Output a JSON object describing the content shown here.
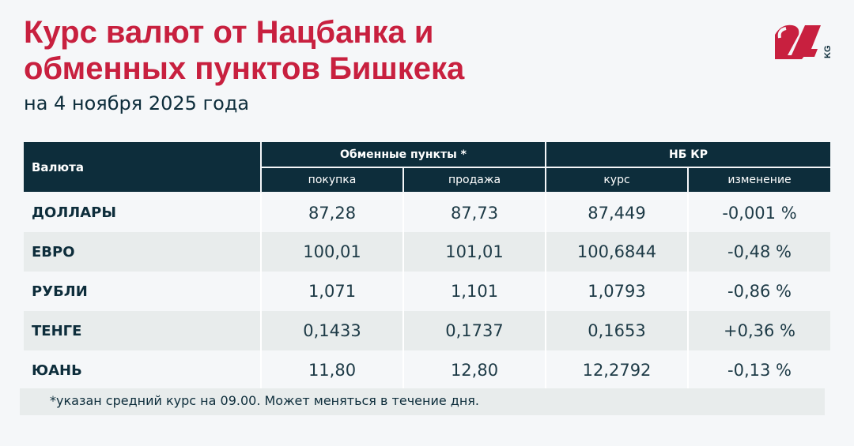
{
  "title": "Курс валют от Нацбанка и обменных пунктов Бишкека",
  "subtitle": "на 4 ноября 2025 года",
  "logo": {
    "text": "24 KG",
    "color": "#c8203f"
  },
  "colors": {
    "accent": "#c8203f",
    "header": "#0d2d3b"
  },
  "table": {
    "col_currency": "Валюта",
    "group_exchange": "Обменные пункты *",
    "group_nb": "НБ КР",
    "sub": [
      "покупка",
      "продажа",
      "курс",
      "изменение"
    ],
    "rows": [
      {
        "name": "ДОЛЛАРЫ",
        "buy": "87,28",
        "sell": "87,73",
        "rate": "87,449",
        "change": "-0,001 %"
      },
      {
        "name": "ЕВРО",
        "buy": "100,01",
        "sell": "101,01",
        "rate": "100,6844",
        "change": "-0,48 %"
      },
      {
        "name": "РУБЛИ",
        "buy": "1,071",
        "sell": "1,101",
        "rate": "1,0793",
        "change": "-0,86 %"
      },
      {
        "name": "ТЕНГЕ",
        "buy": "0,1433",
        "sell": "0,1737",
        "rate": "0,1653",
        "change": "+0,36 %"
      },
      {
        "name": "ЮАНЬ",
        "buy": "11,80",
        "sell": "12,80",
        "rate": "12,2792",
        "change": "-0,13 %"
      }
    ]
  },
  "footnote": "*указан средний курс на 09.00. Может меняться в течение дня."
}
